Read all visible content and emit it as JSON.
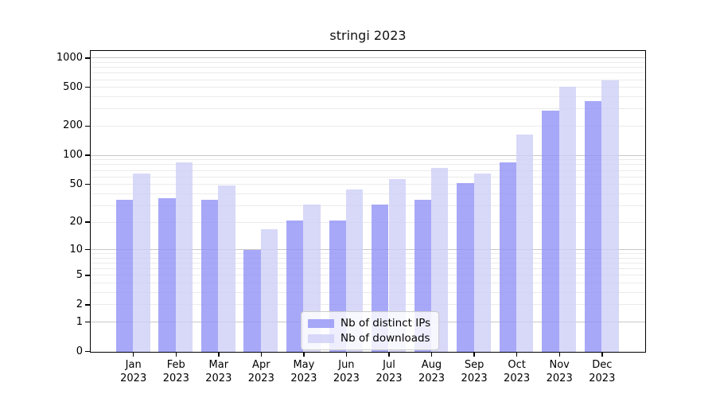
{
  "chart_data": {
    "type": "bar",
    "title": "stringi 2023",
    "categories": [
      "Jan",
      "Feb",
      "Mar",
      "Apr",
      "May",
      "Jun",
      "Jul",
      "Aug",
      "Sep",
      "Oct",
      "Nov",
      "Dec"
    ],
    "x_year": "2023",
    "series": [
      {
        "name": "Nb of distinct IPs",
        "color": "rgba(146,146,246,0.8)",
        "solid_color": "#a8a8f8",
        "values": [
          35,
          36,
          35,
          10,
          21,
          21,
          31,
          35,
          52,
          85,
          290,
          363
        ]
      },
      {
        "name": "Nb of downloads",
        "color": "rgba(206,206,247,0.8)",
        "solid_color": "#d8d8f9",
        "values": [
          66,
          85,
          49,
          17,
          31,
          45,
          57,
          75,
          66,
          166,
          508,
          590
        ]
      }
    ],
    "y_ticks": [
      0,
      1,
      2,
      5,
      10,
      20,
      50,
      100,
      200,
      500,
      1000
    ],
    "y_scale": "log1p",
    "ylim": [
      0,
      1000
    ],
    "grid": "horizontal, minor 2-9 per decade, major at powers of 10",
    "legend_position": "inside bottom-center",
    "colors": {
      "major_grid": "#c8c8c8",
      "minor_grid": "#ebebeb",
      "axis": "#000000",
      "background": "#ffffff"
    }
  }
}
